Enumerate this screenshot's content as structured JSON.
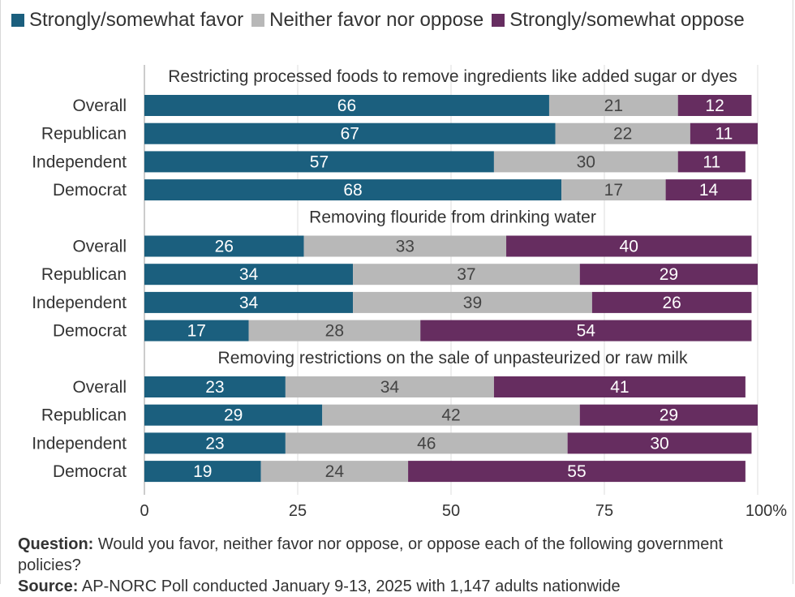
{
  "legend": {
    "items": [
      {
        "label": "Strongly/somewhat favor",
        "color": "#1b5f7e"
      },
      {
        "label": "Neither favor nor oppose",
        "color": "#b8b8b8"
      },
      {
        "label": "Strongly/somewhat oppose",
        "color": "#662d60"
      }
    ]
  },
  "chart_data": {
    "type": "bar",
    "orientation": "horizontal",
    "stacked": true,
    "xlim": [
      0,
      100
    ],
    "x_ticks": [
      "0",
      "25",
      "50",
      "75",
      "100%"
    ],
    "x_tick_values": [
      0,
      25,
      50,
      75,
      100
    ],
    "grid": true,
    "legend_position": "top",
    "series_names": [
      "Strongly/somewhat favor",
      "Neither favor nor oppose",
      "Strongly/somewhat oppose"
    ],
    "colors": [
      "#1b5f7e",
      "#b8b8b8",
      "#662d60"
    ],
    "label_colors": [
      "#ffffff",
      "#444444",
      "#ffffff"
    ],
    "groups": [
      {
        "title": "Restricting processed foods to remove ingredients like added sugar or dyes",
        "rows": [
          {
            "label": "Overall",
            "values": [
              66,
              21,
              12
            ]
          },
          {
            "label": "Republican",
            "values": [
              67,
              22,
              11
            ]
          },
          {
            "label": "Independent",
            "values": [
              57,
              30,
              11
            ]
          },
          {
            "label": "Democrat",
            "values": [
              68,
              17,
              14
            ]
          }
        ]
      },
      {
        "title": "Removing flouride from drinking water",
        "rows": [
          {
            "label": "Overall",
            "values": [
              26,
              33,
              40
            ]
          },
          {
            "label": "Republican",
            "values": [
              34,
              37,
              29
            ]
          },
          {
            "label": "Independent",
            "values": [
              34,
              39,
              26
            ]
          },
          {
            "label": "Democrat",
            "values": [
              17,
              28,
              54
            ]
          }
        ]
      },
      {
        "title": "Removing restrictions on the sale of unpasteurized or raw milk",
        "rows": [
          {
            "label": "Overall",
            "values": [
              23,
              34,
              41
            ]
          },
          {
            "label": "Republican",
            "values": [
              29,
              42,
              29
            ]
          },
          {
            "label": "Independent",
            "values": [
              23,
              46,
              30
            ]
          },
          {
            "label": "Democrat",
            "values": [
              19,
              24,
              55
            ]
          }
        ]
      }
    ]
  },
  "footer": {
    "question_label": "Question:",
    "question_text": " Would you favor, neither favor nor oppose, or oppose each of the following government policies?",
    "source_label": "Source:",
    "source_text": " AP-NORC Poll conducted  January 9-13, 2025 with 1,147 adults nationwide"
  }
}
